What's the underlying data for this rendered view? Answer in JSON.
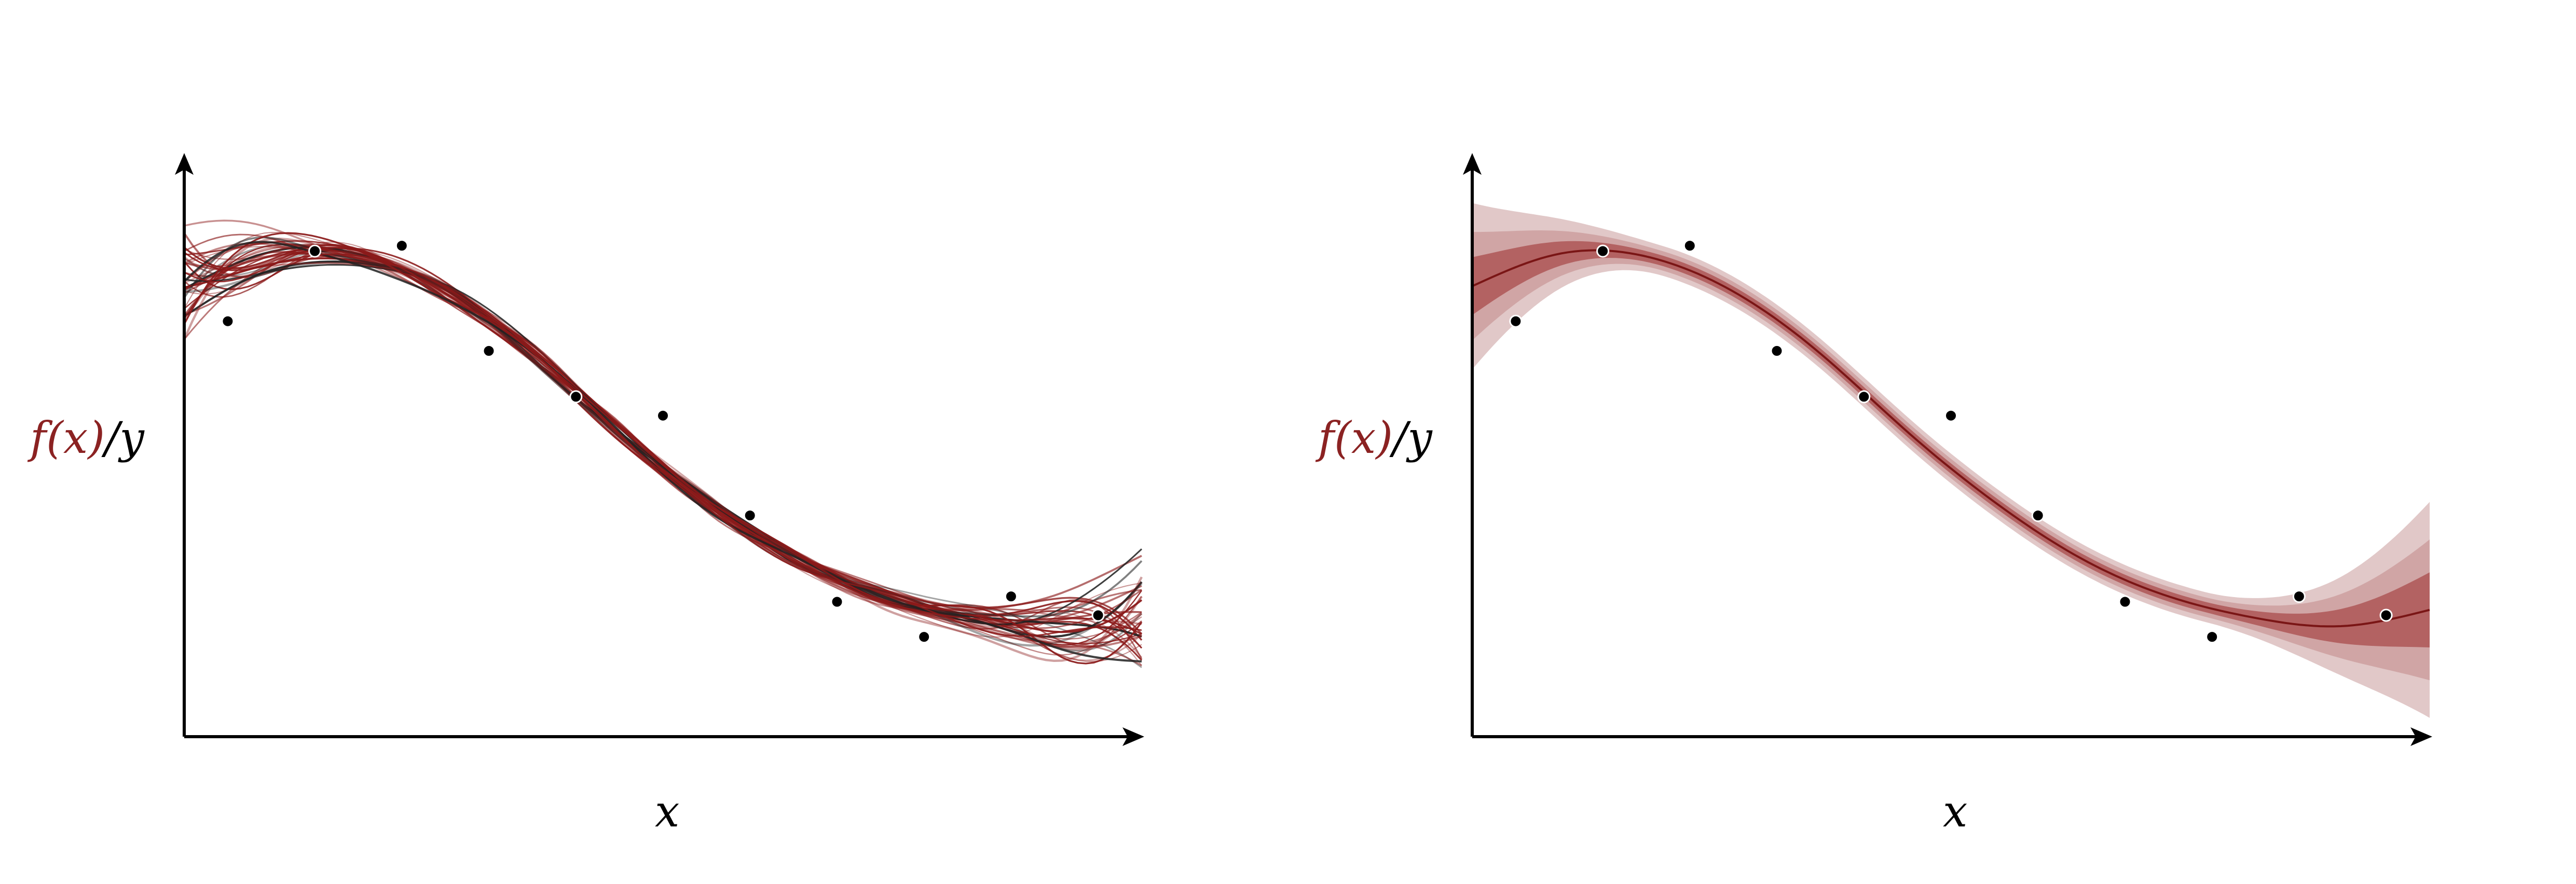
{
  "figure": {
    "colors": {
      "curve": "#8b1a1a",
      "mean": "#7a1515",
      "band_inner": "#a03535",
      "band_outer": "#c99a9a",
      "points": "#000000",
      "axes": "#000000",
      "label_f": "#8b2222"
    },
    "panels": [
      {
        "label_f": "f(x)",
        "label_sep": "/",
        "label_y": "y",
        "xlabel": "x"
      },
      {
        "label_f": "f(x)",
        "label_sep": "/",
        "label_y": "y",
        "xlabel": "x"
      }
    ]
  },
  "chart_data": [
    {
      "type": "line",
      "variant": "posterior function samples",
      "title": "",
      "xlabel": "x",
      "ylabel": "f(x)/y",
      "xlim": [
        0,
        11
      ],
      "ylim": [
        0,
        10
      ],
      "axis_ticks": false,
      "grid": false,
      "num_sample_curves": 40,
      "mean_function": {
        "x": [
          0,
          1,
          2,
          3,
          4,
          5,
          6,
          7,
          8,
          9,
          10,
          11
        ],
        "y": [
          8.35,
          8.95,
          8.9,
          8.25,
          7.1,
          5.65,
          4.35,
          3.3,
          2.6,
          2.2,
          2.05,
          2.35
        ]
      },
      "observations": {
        "x": [
          0.5,
          1.5,
          2.5,
          3.5,
          4.5,
          5.5,
          6.5,
          7.5,
          8.5,
          9.5,
          10.5
        ],
        "y": [
          7.7,
          9.0,
          9.1,
          7.15,
          6.3,
          5.95,
          4.1,
          2.5,
          1.85,
          2.6,
          2.25
        ]
      }
    },
    {
      "type": "area",
      "variant": "posterior mean with credible bands",
      "title": "",
      "xlabel": "x",
      "ylabel": "f(x)/y",
      "xlim": [
        0,
        11
      ],
      "ylim": [
        0,
        10
      ],
      "axis_ticks": false,
      "grid": false,
      "mean_function": {
        "x": [
          0,
          1,
          2,
          3,
          4,
          5,
          6,
          7,
          8,
          9,
          10,
          11
        ],
        "y": [
          8.35,
          8.95,
          8.9,
          8.25,
          7.1,
          5.65,
          4.35,
          3.3,
          2.6,
          2.2,
          2.05,
          2.35
        ]
      },
      "observations": {
        "x": [
          0.5,
          1.5,
          2.5,
          3.5,
          4.5,
          5.5,
          6.5,
          7.5,
          8.5,
          9.5,
          10.5
        ],
        "y": [
          7.7,
          9.0,
          9.1,
          7.15,
          6.3,
          5.95,
          4.1,
          2.5,
          1.85,
          2.6,
          2.25
        ]
      }
    }
  ]
}
